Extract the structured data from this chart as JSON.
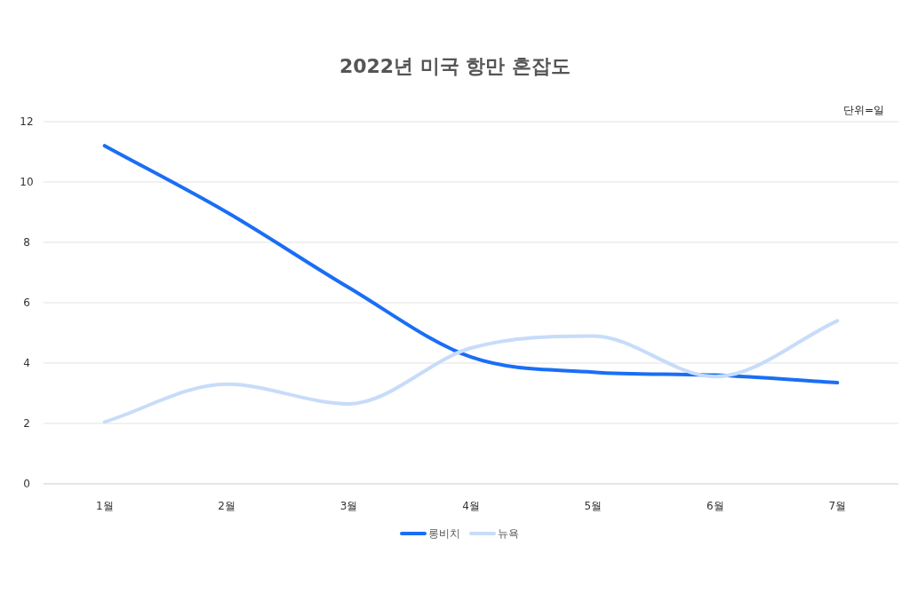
{
  "chart_data": {
    "type": "line",
    "title": "2022년 미국 항만 혼잡도",
    "annotations": [
      "단위=일"
    ],
    "categories": [
      "1월",
      "2월",
      "3월",
      "4월",
      "5월",
      "6월",
      "7월"
    ],
    "series": [
      {
        "name": "롱비치",
        "color": "#1a6ef5",
        "values": [
          11.2,
          9.0,
          6.5,
          4.2,
          3.7,
          3.6,
          3.35
        ]
      },
      {
        "name": "뉴욕",
        "color": "#c7dcf9",
        "values": [
          2.05,
          3.3,
          2.65,
          4.5,
          4.9,
          3.55,
          5.4
        ]
      }
    ],
    "ylim": [
      0,
      12
    ],
    "yticks": [
      0,
      2,
      4,
      6,
      8,
      10,
      12
    ],
    "grid": "y",
    "legend": "bottom",
    "marker": "none",
    "line_style": "solid"
  }
}
